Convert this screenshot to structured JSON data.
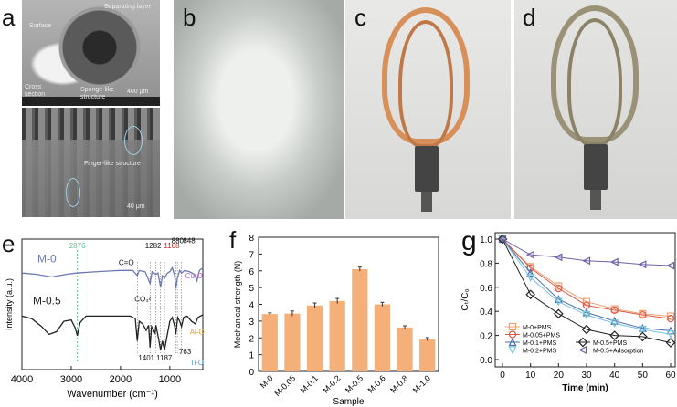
{
  "panels": {
    "a": {
      "letter": "a",
      "annotations": {
        "separating_layer": "Separating layer",
        "surface": "Surface",
        "cross_section": "Cross section",
        "sponge": "Sponge-like structure",
        "scale_top": "400 μm",
        "finger": "Finger-like structure",
        "scale_bottom": "40 μm"
      }
    },
    "b": {
      "letter": "b"
    },
    "c": {
      "letter": "c"
    },
    "d": {
      "letter": "d"
    },
    "e": {
      "letter": "e"
    },
    "f": {
      "letter": "f"
    },
    "g": {
      "letter": "g"
    }
  },
  "chart_data": [
    {
      "panel": "e",
      "type": "line",
      "xlabel": "Wavenumber (cm⁻¹)",
      "ylabel": "Intensity (a.u.)",
      "xlim": [
        4000,
        330
      ],
      "x_reversed": true,
      "xticks": [
        4000,
        3000,
        2000,
        1000
      ],
      "series": [
        {
          "name": "M-0",
          "color": "#6a78b4",
          "points": [
            [
              4000,
              0.74
            ],
            [
              3700,
              0.73
            ],
            [
              3400,
              0.71
            ],
            [
              3100,
              0.73
            ],
            [
              2900,
              0.74
            ],
            [
              2500,
              0.75
            ],
            [
              2000,
              0.76
            ],
            [
              1750,
              0.76
            ],
            [
              1660,
              0.72
            ],
            [
              1620,
              0.76
            ],
            [
              1500,
              0.75
            ],
            [
              1401,
              0.66
            ],
            [
              1360,
              0.75
            ],
            [
              1282,
              0.73
            ],
            [
              1240,
              0.74
            ],
            [
              1187,
              0.63
            ],
            [
              1150,
              0.72
            ],
            [
              1108,
              0.7
            ],
            [
              1050,
              0.74
            ],
            [
              1000,
              0.75
            ],
            [
              950,
              0.78
            ],
            [
              900,
              0.72
            ],
            [
              880,
              0.62
            ],
            [
              848,
              0.7
            ],
            [
              800,
              0.76
            ],
            [
              760,
              0.74
            ],
            [
              700,
              0.76
            ],
            [
              600,
              0.75
            ],
            [
              500,
              0.73
            ],
            [
              450,
              0.68
            ],
            [
              400,
              0.76
            ],
            [
              330,
              0.78
            ]
          ]
        },
        {
          "name": "M-0.5",
          "color": "#222222",
          "points": [
            [
              4000,
              0.41
            ],
            [
              3800,
              0.39
            ],
            [
              3600,
              0.33
            ],
            [
              3450,
              0.27
            ],
            [
              3300,
              0.29
            ],
            [
              3150,
              0.37
            ],
            [
              3000,
              0.38
            ],
            [
              2920,
              0.32
            ],
            [
              2876,
              0.26
            ],
            [
              2820,
              0.36
            ],
            [
              2700,
              0.41
            ],
            [
              2300,
              0.41
            ],
            [
              1800,
              0.41
            ],
            [
              1700,
              0.39
            ],
            [
              1660,
              0.22
            ],
            [
              1620,
              0.37
            ],
            [
              1550,
              0.35
            ],
            [
              1480,
              0.3
            ],
            [
              1430,
              0.34
            ],
            [
              1401,
              0.17
            ],
            [
              1370,
              0.33
            ],
            [
              1300,
              0.28
            ],
            [
              1282,
              0.34
            ],
            [
              1230,
              0.24
            ],
            [
              1187,
              0.15
            ],
            [
              1150,
              0.22
            ],
            [
              1108,
              0.15
            ],
            [
              1060,
              0.25
            ],
            [
              1000,
              0.37
            ],
            [
              950,
              0.4
            ],
            [
              900,
              0.33
            ],
            [
              880,
              0.27
            ],
            [
              840,
              0.4
            ],
            [
              800,
              0.37
            ],
            [
              763,
              0.33
            ],
            [
              720,
              0.4
            ],
            [
              650,
              0.41
            ],
            [
              560,
              0.37
            ],
            [
              480,
              0.35
            ],
            [
              430,
              0.4
            ],
            [
              330,
              0.42
            ]
          ]
        }
      ],
      "annotations": [
        {
          "text": "2876",
          "x": 2876,
          "color": "#5cc08e",
          "dashed_line": true
        },
        {
          "text": "C=O",
          "x": 1660,
          "color": "#111111"
        },
        {
          "text": "1282",
          "x": 1282,
          "color": "#111111"
        },
        {
          "text": "1108",
          "x": 1108,
          "color": "#d02020"
        },
        {
          "text": "880",
          "x": 880,
          "color": "#111111"
        },
        {
          "text": "848",
          "x": 848,
          "color": "#111111"
        },
        {
          "text": "CO₃²",
          "x": 1401,
          "color": "#111111"
        },
        {
          "text": "1401",
          "x": 1401,
          "color": "#111111"
        },
        {
          "text": "1187",
          "x": 1187,
          "color": "#111111"
        },
        {
          "text": "763",
          "x": 763,
          "color": "#111111"
        },
        {
          "text": "Cu-O",
          "x": 620,
          "color": "#c060c0"
        },
        {
          "text": "Al-O",
          "x": 560,
          "color": "#e0a030"
        },
        {
          "text": "Ti-O",
          "x": 450,
          "color": "#3aa0d0"
        }
      ]
    },
    {
      "panel": "f",
      "type": "bar",
      "xlabel": "Sample",
      "ylabel": "Mechanical strength (N)",
      "ylim": [
        0,
        8
      ],
      "yticks": [
        0,
        1,
        2,
        3,
        4,
        5,
        6,
        7,
        8
      ],
      "bar_color": "#f5b07a",
      "categories": [
        "M-0",
        "M-0.05",
        "M-0.1",
        "M-0.2",
        "M-0.5",
        "M-0.6",
        "M-0.8",
        "M-1.0"
      ],
      "values": [
        3.42,
        3.45,
        3.93,
        4.2,
        6.1,
        4.0,
        2.62,
        1.92
      ],
      "errors": [
        0.07,
        0.15,
        0.15,
        0.15,
        0.12,
        0.12,
        0.1,
        0.1
      ]
    },
    {
      "panel": "g",
      "type": "line",
      "xlabel": "Time (min)",
      "ylabel": "Cₜ/C₀",
      "xlim": [
        -2.5,
        62
      ],
      "ylim": [
        -0.03,
        1.05
      ],
      "xticks": [
        0,
        10,
        20,
        30,
        40,
        50,
        60
      ],
      "yticks": [
        "0.0",
        "0.2",
        "0.4",
        "0.6",
        "0.8",
        "1.0"
      ],
      "legend": "bottom-left",
      "x": [
        0,
        10,
        20,
        30,
        40,
        50,
        60
      ],
      "series": [
        {
          "name": "M-0+PMS",
          "marker": "square",
          "color": "#f0a070",
          "values": [
            1.0,
            0.77,
            0.61,
            0.48,
            0.42,
            0.38,
            0.36
          ]
        },
        {
          "name": "M-0.05+PMS",
          "marker": "circle",
          "color": "#d85a4a",
          "values": [
            1.0,
            0.76,
            0.59,
            0.45,
            0.41,
            0.37,
            0.34
          ]
        },
        {
          "name": "M-0.1+PMS",
          "marker": "triangle-up",
          "color": "#4a6fa8",
          "values": [
            1.0,
            0.72,
            0.5,
            0.39,
            0.32,
            0.26,
            0.24
          ]
        },
        {
          "name": "M-0.2+PMS",
          "marker": "triangle-down",
          "color": "#78c4e0",
          "values": [
            1.0,
            0.68,
            0.48,
            0.37,
            0.3,
            0.25,
            0.21
          ]
        },
        {
          "name": "M-0.5+PMS",
          "marker": "diamond",
          "color": "#222222",
          "values": [
            1.0,
            0.54,
            0.38,
            0.25,
            0.2,
            0.19,
            0.14
          ]
        },
        {
          "name": "M-0.5+Adsorption",
          "marker": "triangle-left",
          "color": "#7060a8",
          "values": [
            1.0,
            0.87,
            0.85,
            0.82,
            0.81,
            0.79,
            0.78
          ]
        }
      ]
    }
  ]
}
